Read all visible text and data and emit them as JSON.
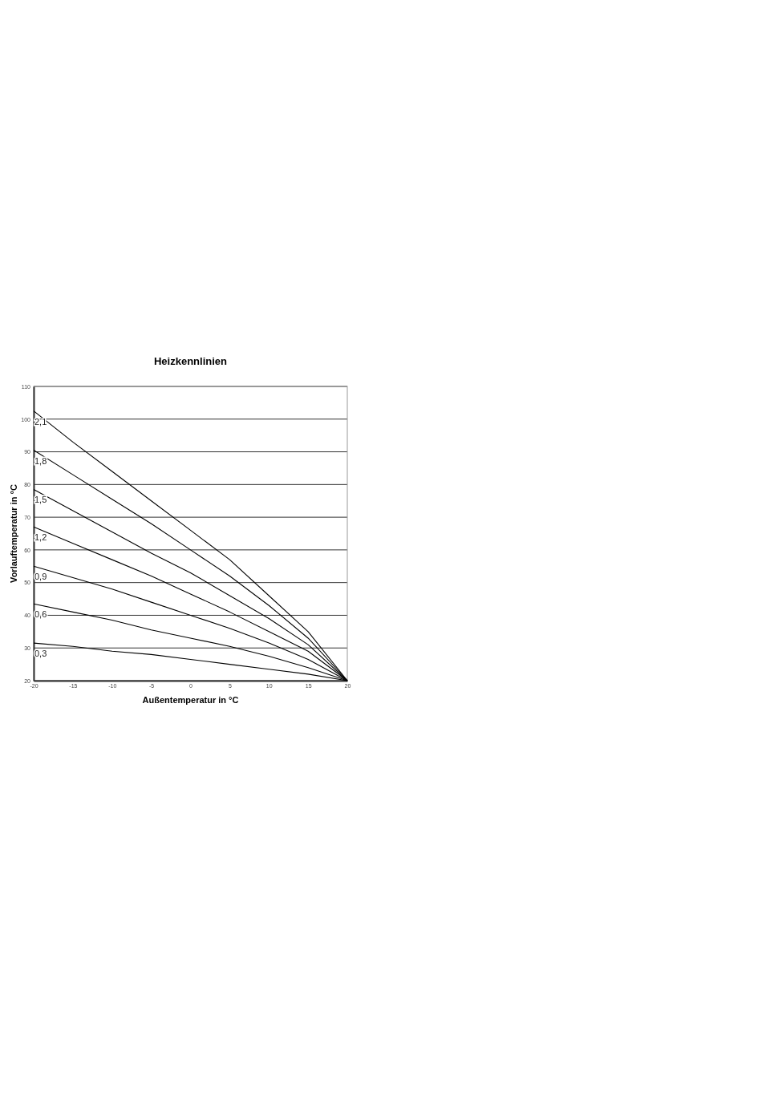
{
  "chart_data": {
    "type": "line",
    "title": "Heizkennlinien",
    "xlabel": "Außentemperatur in °C",
    "ylabel": "Vorlauftemperatur in °C",
    "x": [
      -20,
      -15,
      -10,
      -5,
      0,
      5,
      10,
      15,
      20
    ],
    "series": [
      {
        "name": "2,1",
        "color": "#000000",
        "values": [
          102.5,
          93,
          84,
          75,
          66,
          57,
          46,
          35,
          20
        ]
      },
      {
        "name": "1,8",
        "color": "#000000",
        "values": [
          90.5,
          83,
          75.5,
          68,
          60,
          52,
          43,
          33,
          20
        ]
      },
      {
        "name": "1,5",
        "color": "#000000",
        "values": [
          78.5,
          72,
          65.5,
          59,
          53,
          46,
          39,
          31,
          20
        ]
      },
      {
        "name": "1,2",
        "color": "#000000",
        "values": [
          67,
          62,
          57,
          52,
          46.5,
          41,
          35,
          29,
          20
        ]
      },
      {
        "name": "0,9",
        "color": "#000000",
        "values": [
          55,
          51.5,
          48,
          44,
          40,
          36,
          31.5,
          26.5,
          20
        ]
      },
      {
        "name": "0,6",
        "color": "#000000",
        "values": [
          43.5,
          41,
          38.5,
          35.5,
          33,
          30.5,
          27.5,
          24,
          20
        ]
      },
      {
        "name": "0,3",
        "color": "#000000",
        "values": [
          31.5,
          30.5,
          29,
          28,
          26.5,
          25,
          23.5,
          22,
          20
        ]
      }
    ],
    "xlim": [
      -20,
      20
    ],
    "xticks": [
      -20,
      -15,
      -10,
      -5,
      0,
      5,
      10,
      15,
      20
    ],
    "ylim": [
      20,
      110
    ],
    "yticks": [
      20,
      30,
      40,
      50,
      60,
      70,
      80,
      90,
      100,
      110
    ],
    "grid": "y",
    "legend": false,
    "marker": "none",
    "line_style": "solid"
  }
}
